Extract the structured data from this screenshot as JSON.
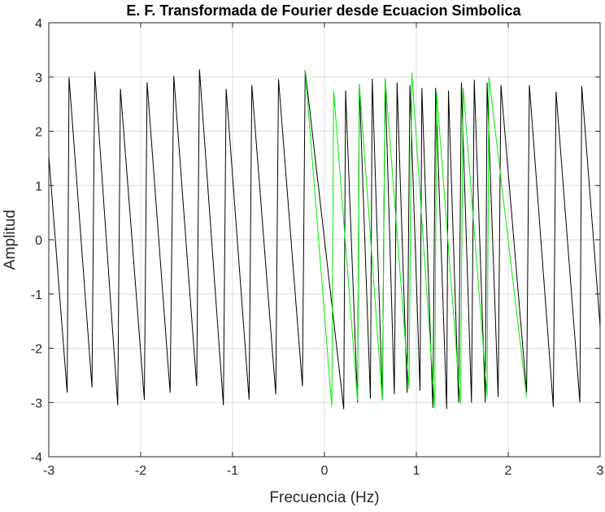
{
  "chart_data": {
    "type": "line",
    "title": "E. F. Transformada de Fourier desde Ecuacion Simbolica",
    "xlabel": "Frecuencia (Hz)",
    "ylabel": "Amplitud",
    "xlim": [
      -3,
      3
    ],
    "ylim": [
      -4,
      4
    ],
    "xticks": [
      -3,
      -2,
      -1,
      0,
      1,
      2,
      3
    ],
    "yticks": [
      -4,
      -3,
      -2,
      -1,
      0,
      1,
      2,
      3,
      4
    ],
    "grid": true,
    "legend": "none",
    "series": [
      {
        "color": "#000000",
        "x": [
          -3.0,
          -2.8,
          -2.78,
          -2.53,
          -2.5,
          -2.25,
          -2.22,
          -1.96,
          -1.93,
          -1.68,
          -1.64,
          -1.39,
          -1.36,
          -1.1,
          -1.07,
          -0.82,
          -0.79,
          -0.53,
          -0.5,
          -0.24,
          -0.21,
          0.21,
          0.23,
          0.36,
          0.38,
          0.5,
          0.52,
          0.63,
          0.66,
          0.76,
          0.79,
          0.9,
          0.93,
          1.04,
          1.06,
          1.18,
          1.21,
          1.33,
          1.35,
          1.46,
          1.49,
          1.6,
          1.63,
          1.75,
          1.77,
          1.89,
          1.92,
          2.2,
          2.23,
          2.49,
          2.52,
          2.78,
          2.8,
          3.0
        ],
        "y": [
          1.55,
          -2.82,
          3.0,
          -2.72,
          3.1,
          -3.05,
          2.78,
          -2.95,
          2.9,
          -2.82,
          3.02,
          -2.7,
          3.14,
          -3.05,
          2.78,
          -2.95,
          2.85,
          -2.85,
          2.96,
          -2.7,
          3.13,
          -3.12,
          2.75,
          -3.0,
          2.87,
          -2.93,
          2.97,
          -2.93,
          2.95,
          -2.85,
          2.9,
          -2.82,
          2.85,
          -2.78,
          2.8,
          -3.1,
          2.8,
          -3.12,
          2.75,
          -3.0,
          2.9,
          -3.0,
          2.95,
          -3.0,
          2.9,
          -2.9,
          2.85,
          -2.82,
          2.85,
          -3.08,
          2.73,
          -3.0,
          2.83,
          -1.6
        ]
      },
      {
        "color": "#00ee00",
        "x": [
          -0.21,
          0.08,
          0.1,
          0.36,
          0.38,
          0.63,
          0.66,
          0.92,
          0.95,
          1.2,
          1.22,
          1.48,
          1.51,
          1.77,
          1.79,
          2.2
        ],
        "y": [
          3.13,
          -3.08,
          2.75,
          -2.97,
          2.87,
          -2.97,
          2.98,
          -2.75,
          3.08,
          -3.1,
          2.72,
          -3.03,
          2.8,
          -2.88,
          3.0,
          -2.9
        ]
      }
    ]
  }
}
